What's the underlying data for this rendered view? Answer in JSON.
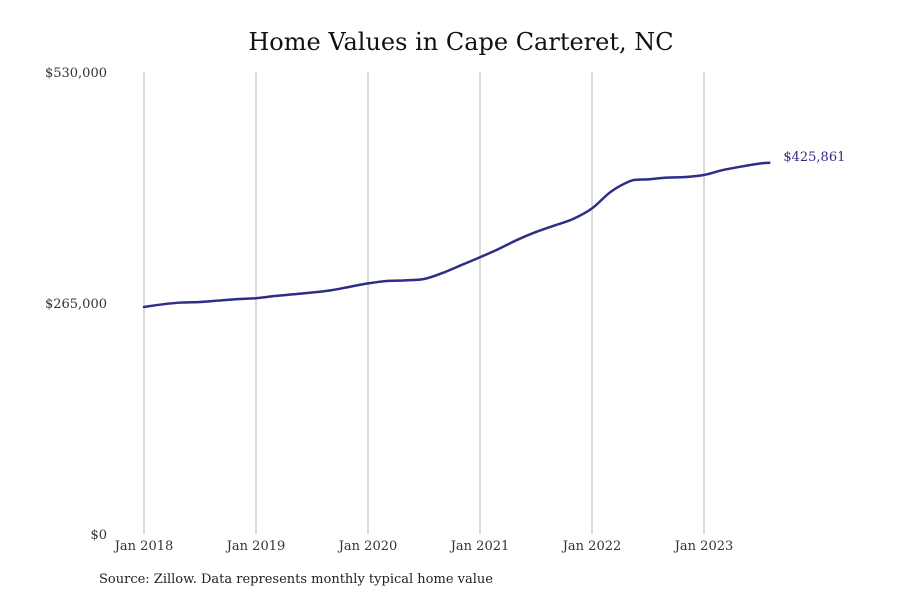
{
  "chart_data": {
    "type": "line",
    "title": "Home Values in Cape Carteret, NC",
    "xlabel": "",
    "ylabel": "",
    "ylim": [
      0,
      530000
    ],
    "xlim": [
      "2018-01",
      "2023-09"
    ],
    "y_ticks": [
      {
        "value": 0,
        "label": "$0"
      },
      {
        "value": 265000,
        "label": "$265,000"
      },
      {
        "value": 530000,
        "label": "$530,000"
      }
    ],
    "x_ticks": [
      {
        "value": "2018-01",
        "label": "Jan 2018"
      },
      {
        "value": "2019-01",
        "label": "Jan 2019"
      },
      {
        "value": "2020-01",
        "label": "Jan 2020"
      },
      {
        "value": "2021-01",
        "label": "Jan 2021"
      },
      {
        "value": "2022-01",
        "label": "Jan 2022"
      },
      {
        "value": "2023-01",
        "label": "Jan 2023"
      }
    ],
    "grid": {
      "vertical": true,
      "horizontal": false
    },
    "series": [
      {
        "color": "#2e2d88",
        "x": [
          "2018-01",
          "2018-03",
          "2018-05",
          "2018-07",
          "2018-09",
          "2018-11",
          "2019-01",
          "2019-03",
          "2019-05",
          "2019-07",
          "2019-09",
          "2019-11",
          "2020-01",
          "2020-03",
          "2020-05",
          "2020-07",
          "2020-09",
          "2020-11",
          "2021-01",
          "2021-03",
          "2021-05",
          "2021-07",
          "2021-09",
          "2021-11",
          "2022-01",
          "2022-03",
          "2022-05",
          "2022-06",
          "2022-07",
          "2022-09",
          "2022-11",
          "2023-01",
          "2023-03",
          "2023-05",
          "2023-07",
          "2023-08"
        ],
        "values": [
          260500,
          263500,
          265500,
          266200,
          267800,
          269500,
          270500,
          273000,
          275000,
          277000,
          279500,
          283500,
          287500,
          290200,
          291000,
          292500,
          299500,
          308500,
          317500,
          327000,
          337500,
          346500,
          354000,
          361500,
          373500,
          392500,
          404500,
          406500,
          406800,
          408800,
          409500,
          411800,
          417500,
          421500,
          425000,
          425861
        ]
      }
    ],
    "end_label": "$425,861"
  },
  "source_note": "Source: Zillow. Data represents monthly typical home value"
}
